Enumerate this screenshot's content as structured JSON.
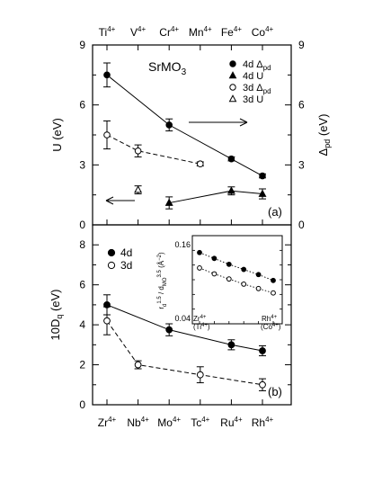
{
  "chart_data": [
    {
      "panel_id": "a",
      "type": "scatter",
      "panel_label": "(a)",
      "compound_title": {
        "main": "SrMO",
        "sub": "3"
      },
      "top_categories": [
        {
          "base": "Ti",
          "sup": "4+"
        },
        {
          "base": "V",
          "sup": "4+"
        },
        {
          "base": "Cr",
          "sup": "4+"
        },
        {
          "base": "Mn",
          "sup": "4+"
        },
        {
          "base": "Fe",
          "sup": "4+"
        },
        {
          "base": "Co",
          "sup": "4+"
        }
      ],
      "ylabel_left": "U  (eV)",
      "ylabel_right": {
        "main": "Δ",
        "sub": "pd",
        "rest": "  (eV)"
      },
      "ylim": [
        0,
        9
      ],
      "yticks_left": [
        "0",
        "3",
        "6",
        "9"
      ],
      "yticks_right": [
        "0",
        "3",
        "6",
        "9"
      ],
      "legend": [
        {
          "symbol": "filled-circle",
          "label": "4d",
          "var": "Δ",
          "var_sub": "pd"
        },
        {
          "symbol": "filled-triangle",
          "label": "4d",
          "var": "U",
          "var_sub": ""
        },
        {
          "symbol": "open-circle",
          "label": "3d",
          "var": "Δ",
          "var_sub": "pd"
        },
        {
          "symbol": "open-triangle",
          "label": "3d",
          "var": "U",
          "var_sub": ""
        }
      ],
      "series": [
        {
          "name": "4d Δpd",
          "marker": "filled-circle",
          "line": "solid",
          "points": [
            {
              "x": 0,
              "y": 7.5,
              "err": 0.6
            },
            {
              "x": 2,
              "y": 5.0,
              "err": 0.3
            },
            {
              "x": 4,
              "y": 3.3,
              "err": 0.1
            },
            {
              "x": 5,
              "y": 2.45,
              "err": 0.1
            }
          ]
        },
        {
          "name": "3d Δpd",
          "marker": "open-circle",
          "line": "dashed",
          "points": [
            {
              "x": 0,
              "y": 4.5,
              "err": 0.7
            },
            {
              "x": 1,
              "y": 3.7,
              "err": 0.3
            },
            {
              "x": 3,
              "y": 3.05,
              "err": 0.1
            }
          ]
        },
        {
          "name": "4d U",
          "marker": "filled-triangle",
          "line": "solid",
          "points": [
            {
              "x": 2,
              "y": 1.1,
              "err": 0.3
            },
            {
              "x": 4,
              "y": 1.7,
              "err": 0.2
            },
            {
              "x": 5,
              "y": 1.55,
              "err": 0.25
            }
          ]
        },
        {
          "name": "3d U",
          "marker": "open-triangle",
          "line": "none",
          "points": [
            {
              "x": 1,
              "y": 1.75,
              "err": 0.2
            }
          ]
        }
      ],
      "arrows": [
        {
          "direction": "right",
          "points_to": "right axis",
          "y": 5.6
        },
        {
          "direction": "left",
          "points_to": "left axis",
          "y": 1.4
        }
      ]
    },
    {
      "panel_id": "b",
      "type": "scatter",
      "panel_label": "(b)",
      "categories": [
        {
          "base": "Zr",
          "sup": "4+"
        },
        {
          "base": "Nb",
          "sup": "4+"
        },
        {
          "base": "Mo",
          "sup": "4+"
        },
        {
          "base": "Tc",
          "sup": "4+"
        },
        {
          "base": "Ru",
          "sup": "4+"
        },
        {
          "base": "Rh",
          "sup": "4+"
        }
      ],
      "ylabel": {
        "main": "10D",
        "sub": "q",
        "rest": "  (eV)"
      },
      "ylim": [
        0,
        9
      ],
      "yticks": [
        "0",
        "2",
        "4",
        "6",
        "8"
      ],
      "legend": [
        {
          "symbol": "filled-circle",
          "label": "4d"
        },
        {
          "symbol": "open-circle",
          "label": "3d"
        }
      ],
      "series": [
        {
          "name": "4d",
          "marker": "filled-circle",
          "line": "solid",
          "points": [
            {
              "x": 0,
              "y": 5.0,
              "err": 0.5
            },
            {
              "x": 2,
              "y": 3.75,
              "err": 0.3
            },
            {
              "x": 4,
              "y": 3.0,
              "err": 0.25
            },
            {
              "x": 5,
              "y": 2.7,
              "err": 0.25
            }
          ]
        },
        {
          "name": "3d",
          "marker": "open-circle",
          "line": "dashed",
          "points": [
            {
              "x": 0,
              "y": 4.2,
              "err": 0.7
            },
            {
              "x": 1,
              "y": 2.0,
              "err": 0.2
            },
            {
              "x": 3,
              "y": 1.5,
              "err": 0.4
            },
            {
              "x": 5,
              "y": 1.0,
              "err": 0.3
            }
          ]
        }
      ],
      "inset": {
        "type": "scatter",
        "ylim": [
          0.04,
          0.16
        ],
        "yticks": [
          "0.04",
          "0.16"
        ],
        "ylabel": "r_d^1.5 / d_MO^3.5 (Å^-2)",
        "x_labels": [
          {
            "top": "Zr",
            "top_sup": "4+",
            "bottom": "(Ti",
            "bottom_sup": "4+",
            "bottom_close": ")"
          },
          {
            "top": "Rh",
            "top_sup": "4+",
            "bottom": "(Co",
            "bottom_sup": "4+",
            "bottom_close": ")"
          }
        ],
        "series": [
          {
            "name": "4d",
            "marker": "filled-circle",
            "line": "dotted",
            "points": [
              {
                "x": 0,
                "y": 0.137
              },
              {
                "x": 1,
                "y": 0.129
              },
              {
                "x": 2,
                "y": 0.121
              },
              {
                "x": 3,
                "y": 0.114
              },
              {
                "x": 4,
                "y": 0.107
              },
              {
                "x": 5,
                "y": 0.099
              }
            ]
          },
          {
            "name": "3d",
            "marker": "open-circle",
            "line": "dotted",
            "points": [
              {
                "x": 0,
                "y": 0.116
              },
              {
                "x": 1,
                "y": 0.108
              },
              {
                "x": 2,
                "y": 0.101
              },
              {
                "x": 3,
                "y": 0.094
              },
              {
                "x": 4,
                "y": 0.088
              },
              {
                "x": 5,
                "y": 0.082
              }
            ]
          }
        ]
      }
    }
  ]
}
